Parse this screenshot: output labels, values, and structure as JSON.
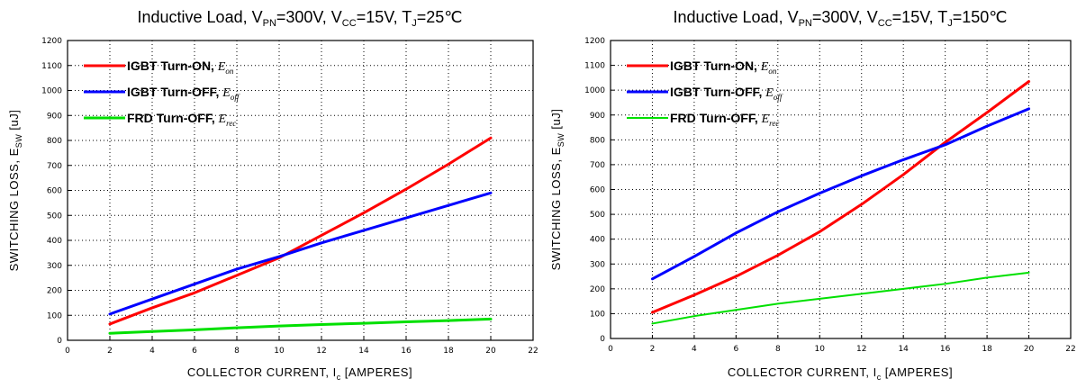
{
  "chart_data": [
    {
      "type": "line",
      "title": {
        "prefix": "Inductive Load, V",
        "s1": "PN",
        "m1": "=300V, V",
        "s2": "CC",
        "m2": "=15V, T",
        "s3": "J",
        "end": "=25℃"
      },
      "xlabel": {
        "main": "COLLECTOR CURRENT, I",
        "sub": "c",
        "end": " [AMPERES]"
      },
      "ylabel": {
        "main": "SWITCHING LOSS, E",
        "sub": "SW",
        "end": " [uJ]"
      },
      "xlim": [
        0,
        22
      ],
      "ylim": [
        0,
        1200
      ],
      "xticks": [
        0,
        2,
        4,
        6,
        8,
        10,
        12,
        14,
        16,
        18,
        20,
        22
      ],
      "yticks": [
        0,
        100,
        200,
        300,
        400,
        500,
        600,
        700,
        800,
        900,
        1000,
        1100,
        1200
      ],
      "grid": true,
      "legend_position": "top-left",
      "series": [
        {
          "name": "IGBT Turn-ON, ",
          "sym": "E",
          "symsub": "on",
          "color": "#ff0000",
          "x": [
            2,
            4,
            6,
            8,
            10,
            12,
            14,
            16,
            18,
            20
          ],
          "values": [
            65,
            130,
            190,
            260,
            330,
            420,
            510,
            605,
            705,
            810
          ]
        },
        {
          "name": "IGBT Turn-OFF, ",
          "sym": "E",
          "symsub": "off",
          "color": "#0000ff",
          "x": [
            2,
            4,
            6,
            8,
            10,
            12,
            14,
            16,
            18,
            20
          ],
          "values": [
            105,
            165,
            225,
            285,
            335,
            390,
            440,
            490,
            540,
            590
          ]
        },
        {
          "name": "FRD Turn-OFF, ",
          "sym": "E",
          "symsub": "rec",
          "color": "#00e000",
          "x": [
            2,
            4,
            6,
            8,
            10,
            12,
            14,
            16,
            18,
            20
          ],
          "values": [
            28,
            35,
            42,
            50,
            57,
            63,
            68,
            74,
            79,
            85
          ]
        }
      ]
    },
    {
      "type": "line",
      "title": {
        "prefix": "Inductive Load, V",
        "s1": "PN",
        "m1": "=300V, V",
        "s2": "CC",
        "m2": "=15V, T",
        "s3": "J",
        "end": "=150℃"
      },
      "xlabel": {
        "main": "COLLECTOR CURRENT, I",
        "sub": "c",
        "end": " [AMPERES]"
      },
      "ylabel": {
        "main": "SWITCHING LOSS, E",
        "sub": "SW",
        "end": " [uJ]"
      },
      "xlim": [
        0,
        22
      ],
      "ylim": [
        0,
        1200
      ],
      "xticks": [
        0,
        2,
        4,
        6,
        8,
        10,
        12,
        14,
        16,
        18,
        20,
        22
      ],
      "yticks": [
        0,
        100,
        200,
        300,
        400,
        500,
        600,
        700,
        800,
        900,
        1000,
        1100,
        1200
      ],
      "grid": true,
      "legend_position": "top-left",
      "series": [
        {
          "name": "IGBT Turn-ON, ",
          "sym": "E",
          "symsub": "on",
          "color": "#ff0000",
          "x": [
            2,
            4,
            6,
            8,
            10,
            12,
            14,
            16,
            18,
            20
          ],
          "values": [
            105,
            175,
            250,
            335,
            430,
            540,
            660,
            790,
            910,
            1035
          ]
        },
        {
          "name": "IGBT Turn-OFF, ",
          "sym": "E",
          "symsub": "off",
          "color": "#0000ff",
          "x": [
            2,
            4,
            6,
            8,
            10,
            12,
            14,
            16,
            18,
            20
          ],
          "values": [
            240,
            330,
            425,
            510,
            585,
            655,
            720,
            780,
            855,
            925
          ]
        },
        {
          "name": "FRD Turn-OFF, ",
          "sym": "E",
          "symsub": "rec",
          "color": "#00e000",
          "x": [
            2,
            4,
            6,
            8,
            10,
            12,
            14,
            16,
            18,
            20
          ],
          "values": [
            60,
            90,
            115,
            140,
            160,
            180,
            200,
            220,
            245,
            265
          ]
        }
      ]
    }
  ]
}
